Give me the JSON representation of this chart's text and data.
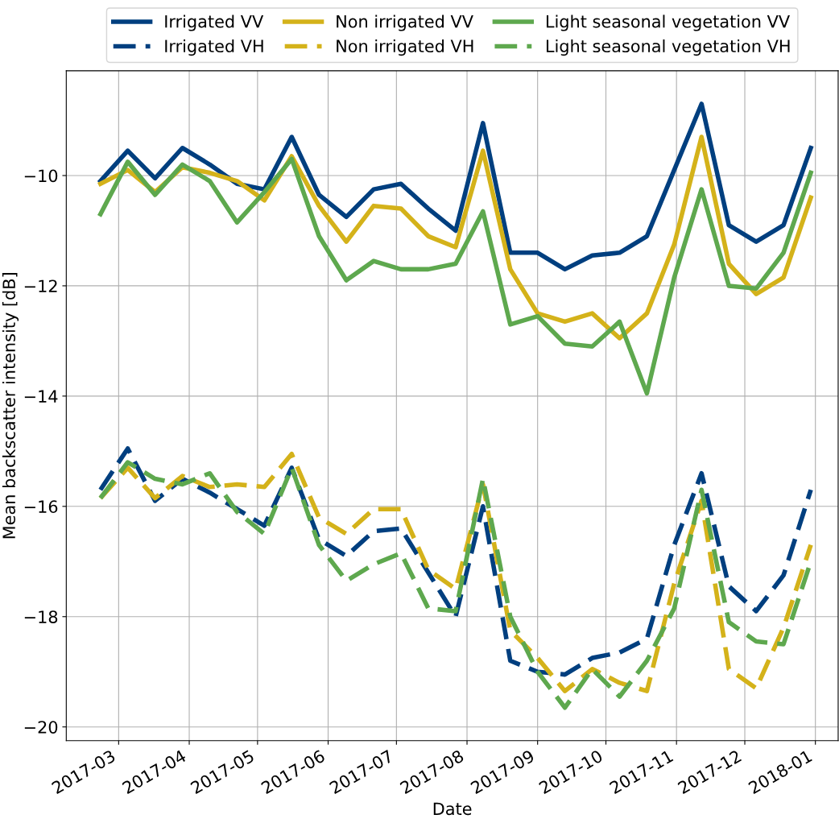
{
  "chart_data": {
    "type": "line",
    "xlabel": "Date",
    "ylabel": "Mean backscatter intensity [dB]",
    "x": [
      "2017-02-21",
      "2017-03-05",
      "2017-03-17",
      "2017-03-29",
      "2017-04-10",
      "2017-04-22",
      "2017-05-04",
      "2017-05-16",
      "2017-05-28",
      "2017-06-09",
      "2017-06-21",
      "2017-07-03",
      "2017-07-15",
      "2017-07-27",
      "2017-08-08",
      "2017-08-20",
      "2017-09-01",
      "2017-09-13",
      "2017-09-25",
      "2017-10-07",
      "2017-10-19",
      "2017-10-31",
      "2017-11-12",
      "2017-11-24",
      "2017-12-06",
      "2017-12-18",
      "2017-12-30"
    ],
    "series": [
      {
        "name": "Irrigated VV",
        "color": "#003f7f",
        "line_style": "solid",
        "values": [
          -10.1,
          -9.55,
          -10.05,
          -9.5,
          -9.8,
          -10.15,
          -10.25,
          -9.3,
          -10.35,
          -10.75,
          -10.25,
          -10.15,
          -10.6,
          -11.0,
          -9.05,
          -11.4,
          -11.4,
          -11.7,
          -11.45,
          -11.4,
          -11.1,
          -9.9,
          -8.7,
          -10.9,
          -11.2,
          -10.9,
          -9.5
        ]
      },
      {
        "name": "Irrigated VH",
        "color": "#003f7f",
        "line_style": "dashed",
        "values": [
          -15.7,
          -14.95,
          -15.9,
          -15.5,
          -15.75,
          -16.05,
          -16.35,
          -15.3,
          -16.6,
          -16.9,
          -16.45,
          -16.4,
          -17.2,
          -18.0,
          -16.0,
          -18.8,
          -19.0,
          -19.05,
          -18.75,
          -18.65,
          -18.4,
          -16.7,
          -15.4,
          -17.45,
          -17.9,
          -17.25,
          -15.7
        ]
      },
      {
        "name": "Non irrigated VV",
        "color": "#d4b21a",
        "line_style": "solid",
        "values": [
          -10.15,
          -9.9,
          -10.3,
          -9.85,
          -9.95,
          -10.1,
          -10.45,
          -9.65,
          -10.55,
          -11.2,
          -10.55,
          -10.6,
          -11.1,
          -11.3,
          -9.55,
          -11.7,
          -12.5,
          -12.65,
          -12.5,
          -12.95,
          -12.5,
          -11.25,
          -9.3,
          -11.6,
          -12.15,
          -11.85,
          -10.4
        ]
      },
      {
        "name": "Non irrigated VH",
        "color": "#d4b21a",
        "line_style": "dashed",
        "values": [
          -15.85,
          -15.3,
          -15.85,
          -15.45,
          -15.65,
          -15.6,
          -15.65,
          -15.05,
          -16.2,
          -16.5,
          -16.05,
          -16.05,
          -17.15,
          -17.5,
          -15.6,
          -18.25,
          -18.75,
          -19.35,
          -18.95,
          -19.2,
          -19.35,
          -17.4,
          -15.9,
          -18.95,
          -19.3,
          -18.2,
          -16.7
        ]
      },
      {
        "name": "Light seasonal vegetation VV",
        "color": "#5ea84e",
        "line_style": "solid",
        "values": [
          -10.7,
          -9.75,
          -10.35,
          -9.8,
          -10.1,
          -10.85,
          -10.3,
          -9.7,
          -11.1,
          -11.9,
          -11.55,
          -11.7,
          -11.7,
          -11.6,
          -10.65,
          -12.7,
          -12.55,
          -13.05,
          -13.1,
          -12.65,
          -13.95,
          -11.85,
          -10.25,
          -12.0,
          -12.05,
          -11.4,
          -9.95
        ]
      },
      {
        "name": "Light seasonal vegetation VH",
        "color": "#5ea84e",
        "line_style": "dashed",
        "values": [
          -15.85,
          -15.2,
          -15.5,
          -15.6,
          -15.4,
          -16.1,
          -16.5,
          -15.3,
          -16.7,
          -17.35,
          -17.05,
          -16.85,
          -17.85,
          -17.9,
          -15.5,
          -18.0,
          -19.0,
          -19.65,
          -18.95,
          -19.45,
          -18.8,
          -17.85,
          -15.7,
          -18.1,
          -18.45,
          -18.5,
          -17.0
        ]
      }
    ],
    "xlim": [
      "2017-02-06",
      "2018-01-11"
    ],
    "xticks": [
      {
        "value": "2017-03-01",
        "label": "2017-03"
      },
      {
        "value": "2017-04-01",
        "label": "2017-04"
      },
      {
        "value": "2017-05-01",
        "label": "2017-05"
      },
      {
        "value": "2017-06-01",
        "label": "2017-06"
      },
      {
        "value": "2017-07-01",
        "label": "2017-07"
      },
      {
        "value": "2017-08-01",
        "label": "2017-08"
      },
      {
        "value": "2017-09-01",
        "label": "2017-09"
      },
      {
        "value": "2017-10-01",
        "label": "2017-10"
      },
      {
        "value": "2017-11-01",
        "label": "2017-11"
      },
      {
        "value": "2017-12-01",
        "label": "2017-12"
      },
      {
        "value": "2018-01-01",
        "label": "2018-01"
      }
    ],
    "ylim": [
      -20.25,
      -8.1
    ],
    "yticks": [
      {
        "value": -20,
        "label": "−20"
      },
      {
        "value": -18,
        "label": "−18"
      },
      {
        "value": -16,
        "label": "−16"
      },
      {
        "value": -14,
        "label": "−14"
      },
      {
        "value": -12,
        "label": "−12"
      },
      {
        "value": -10,
        "label": "−10"
      }
    ],
    "grid": true,
    "legend": "top",
    "marker": "none"
  }
}
